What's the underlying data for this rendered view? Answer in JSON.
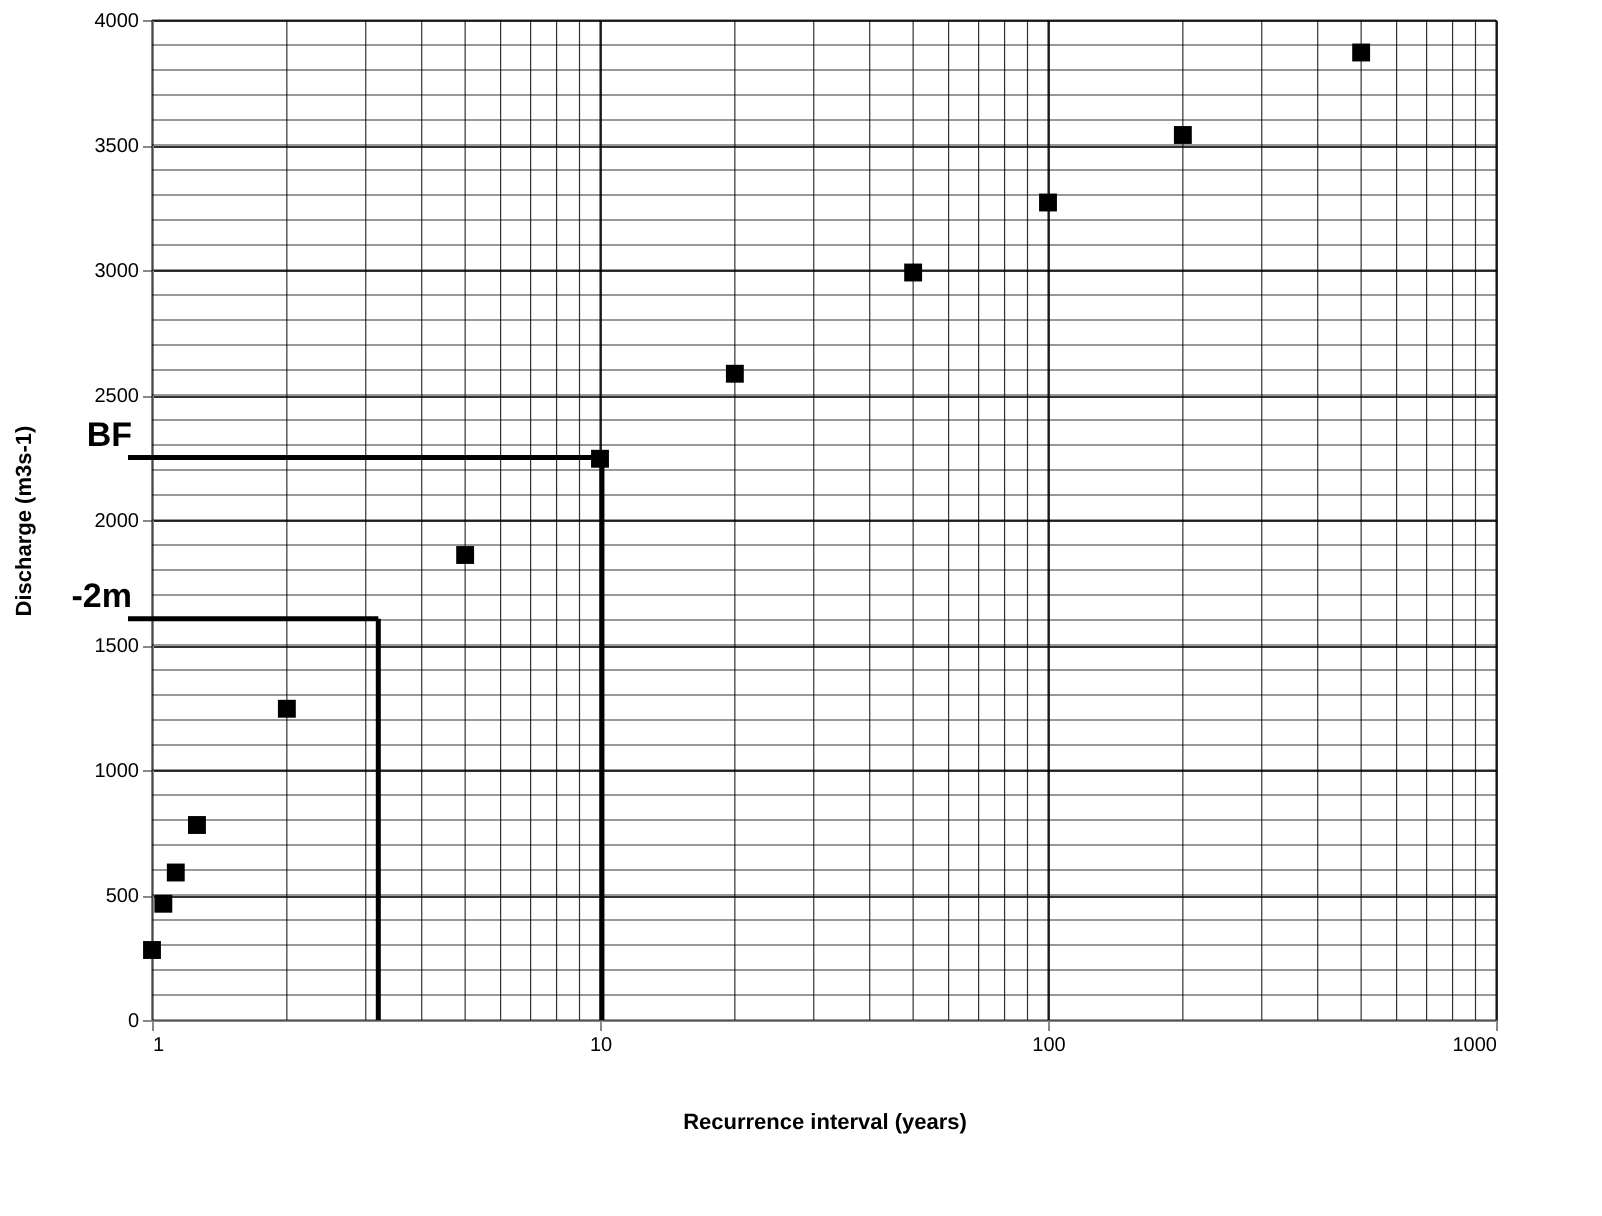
{
  "chart_data": {
    "type": "scatter",
    "xlabel": "Recurrence interval (years)",
    "ylabel": "Discharge (m3s-1)",
    "x": [
      1.0,
      1.06,
      1.13,
      1.26,
      2,
      5,
      10,
      20,
      50,
      100,
      200,
      500
    ],
    "series": [
      {
        "color": "#000000",
        "values": [
          280,
          465,
          590,
          780,
          1245,
          1860,
          2245,
          2585,
          2990,
          3270,
          3540,
          3870
        ]
      }
    ],
    "log": "x",
    "xlim": [
      1,
      1000
    ],
    "xticks": [
      1,
      10,
      100,
      1000
    ],
    "ylim": [
      0,
      4000
    ],
    "yticks": [
      0,
      500,
      1000,
      1500,
      2000,
      2500,
      3000,
      3500,
      4000
    ],
    "grid": true,
    "marker": "square",
    "ref_lines": [
      {
        "axis": "y",
        "value": 2250,
        "label": "BF",
        "color": "#000000"
      },
      {
        "axis": "x",
        "value": 10.1,
        "color": "#000000"
      },
      {
        "axis": "y",
        "value": 1605,
        "label": "-2m",
        "color": "#000000"
      },
      {
        "axis": "x",
        "value": 3.2,
        "color": "#000000"
      }
    ]
  }
}
